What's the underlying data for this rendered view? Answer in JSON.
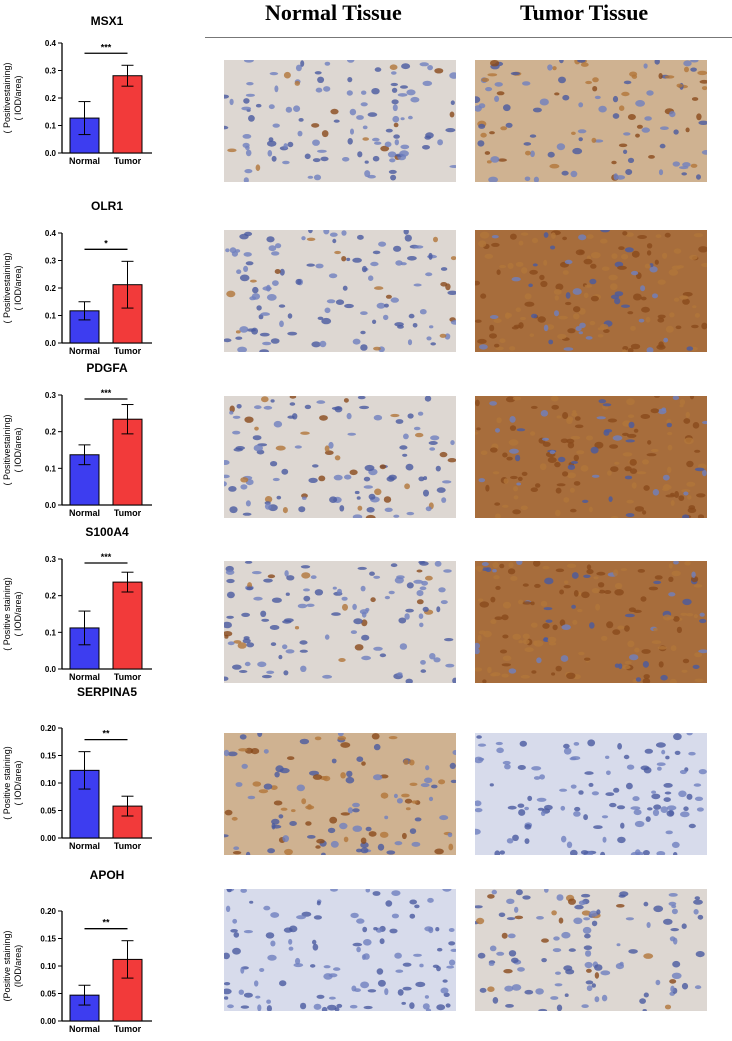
{
  "headers": {
    "normal": "Normal Tissue",
    "tumor": "Tumor Tissue"
  },
  "colors": {
    "normal_bar": "#3d3df0",
    "tumor_bar": "#f23a3a",
    "axis": "#000000"
  },
  "chart_data": [
    {
      "type": "bar",
      "title": "MSX1",
      "categories": [
        "Normal",
        "Tumor"
      ],
      "series": [
        {
          "values": [
            0.127,
            0.281
          ],
          "errors": [
            0.06,
            0.038
          ]
        }
      ],
      "ylabel_lines": [
        "( Positivestaining)",
        "( IOD/area)"
      ],
      "ylim": [
        0,
        0.4
      ],
      "yticks": [
        "0.0",
        "0.1",
        "0.2",
        "0.3",
        "0.4"
      ],
      "significance": "***"
    },
    {
      "type": "bar",
      "title": "OLR1",
      "categories": [
        "Normal",
        "Tumor"
      ],
      "series": [
        {
          "values": [
            0.117,
            0.212
          ],
          "errors": [
            0.033,
            0.085
          ]
        }
      ],
      "ylabel_lines": [
        "( Positivestaining)",
        "( IOD/area)"
      ],
      "ylim": [
        0,
        0.4
      ],
      "yticks": [
        "0.0",
        "0.1",
        "0.2",
        "0.3",
        "0.4"
      ],
      "significance": "*"
    },
    {
      "type": "bar",
      "title": "PDGFA",
      "categories": [
        "Normal",
        "Tumor"
      ],
      "series": [
        {
          "values": [
            0.137,
            0.234
          ],
          "errors": [
            0.027,
            0.04
          ]
        }
      ],
      "ylabel_lines": [
        "( Positivestaining)",
        "( IOD/area)"
      ],
      "ylim": [
        0,
        0.3
      ],
      "yticks": [
        "0.0",
        "0.1",
        "0.2",
        "0.3"
      ],
      "significance": "***"
    },
    {
      "type": "bar",
      "title": "S100A4",
      "categories": [
        "Normal",
        "Tumor"
      ],
      "series": [
        {
          "values": [
            0.112,
            0.237
          ],
          "errors": [
            0.046,
            0.027
          ]
        }
      ],
      "ylabel_lines": [
        "( Positive staining)",
        "( IOD/area)"
      ],
      "ylim": [
        0,
        0.3
      ],
      "yticks": [
        "0.0",
        "0.1",
        "0.2",
        "0.3"
      ],
      "significance": "***"
    },
    {
      "type": "bar",
      "title": "SERPINA5",
      "categories": [
        "Normal",
        "Tumor"
      ],
      "series": [
        {
          "values": [
            0.123,
            0.058
          ],
          "errors": [
            0.034,
            0.018
          ]
        }
      ],
      "ylabel_lines": [
        "( Positive staining)",
        "( IOD/area)"
      ],
      "ylim": [
        0,
        0.2
      ],
      "yticks": [
        "0.00",
        "0.05",
        "0.10",
        "0.15",
        "0.20"
      ],
      "significance": "**"
    },
    {
      "type": "bar",
      "title": "APOH",
      "categories": [
        "Normal",
        "Tumor"
      ],
      "series": [
        {
          "values": [
            0.047,
            0.112
          ],
          "errors": [
            0.018,
            0.034
          ]
        }
      ],
      "ylabel_lines": [
        "(Positive staining)",
        "(IOD/area)"
      ],
      "ylim": [
        0,
        0.2
      ],
      "yticks": [
        "0.00",
        "0.05",
        "0.10",
        "0.15",
        "0.20"
      ],
      "significance": "**"
    }
  ],
  "tissue_images": [
    {
      "normal": "msx1-normal-ihc-micrograph",
      "tumor": "msx1-tumor-ihc-micrograph",
      "normal_stain": "light",
      "tumor_stain": "medium"
    },
    {
      "normal": "olr1-normal-ihc-micrograph",
      "tumor": "olr1-tumor-ihc-micrograph",
      "normal_stain": "light",
      "tumor_stain": "heavy"
    },
    {
      "normal": "pdgfa-normal-ihc-micrograph",
      "tumor": "pdgfa-tumor-ihc-micrograph",
      "normal_stain": "light",
      "tumor_stain": "heavy"
    },
    {
      "normal": "s100a4-normal-ihc-micrograph",
      "tumor": "s100a4-tumor-ihc-micrograph",
      "normal_stain": "light",
      "tumor_stain": "heavy"
    },
    {
      "normal": "serpina5-normal-ihc-micrograph",
      "tumor": "serpina5-tumor-ihc-micrograph",
      "normal_stain": "medium",
      "tumor_stain": "none"
    },
    {
      "normal": "apoh-normal-ihc-micrograph",
      "tumor": "apoh-tumor-ihc-micrograph",
      "normal_stain": "none",
      "tumor_stain": "light"
    }
  ]
}
